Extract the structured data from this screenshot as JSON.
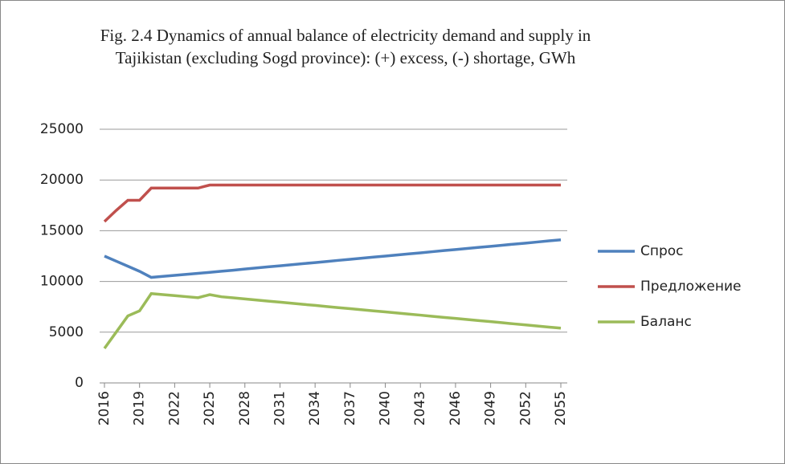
{
  "chart_data": {
    "type": "line",
    "title": "Fig. 2.4 Dynamics of annual balance of electricity demand and supply in Tajikistan (excluding Sogd province): (+) excess, (-) shortage, GWh",
    "x": [
      2016,
      2017,
      2018,
      2019,
      2020,
      2021,
      2022,
      2023,
      2024,
      2025,
      2026,
      2027,
      2028,
      2029,
      2030,
      2031,
      2032,
      2033,
      2034,
      2035,
      2036,
      2037,
      2038,
      2039,
      2040,
      2041,
      2042,
      2043,
      2044,
      2045,
      2046,
      2047,
      2048,
      2049,
      2050,
      2051,
      2052,
      2053,
      2054,
      2055
    ],
    "xlim": [
      2016,
      2055
    ],
    "xticks": [
      2016,
      2019,
      2022,
      2025,
      2028,
      2031,
      2034,
      2037,
      2040,
      2043,
      2046,
      2049,
      2052,
      2055
    ],
    "ylim": [
      0,
      25000
    ],
    "yticks": [
      0,
      5000,
      10000,
      15000,
      20000,
      25000
    ],
    "grid": true,
    "legend": "right",
    "series": [
      {
        "name": "Спрос",
        "color": "#4f81bd",
        "values": [
          12500,
          12000,
          11500,
          11000,
          10400,
          10500,
          10600,
          10700,
          10800,
          10900,
          11010,
          11110,
          11220,
          11330,
          11440,
          11540,
          11650,
          11760,
          11860,
          11970,
          12080,
          12180,
          12290,
          12400,
          12500,
          12610,
          12720,
          12820,
          12930,
          13040,
          13140,
          13250,
          13360,
          13460,
          13570,
          13680,
          13780,
          13890,
          14000,
          14100
        ]
      },
      {
        "name": "Предложение",
        "color": "#c0504d",
        "values": [
          15900,
          17000,
          18000,
          18000,
          19200,
          19200,
          19200,
          19200,
          19200,
          19500,
          19500,
          19500,
          19500,
          19500,
          19500,
          19500,
          19500,
          19500,
          19500,
          19500,
          19500,
          19500,
          19500,
          19500,
          19500,
          19500,
          19500,
          19500,
          19500,
          19500,
          19500,
          19500,
          19500,
          19500,
          19500,
          19500,
          19500,
          19500,
          19500,
          19500
        ]
      },
      {
        "name": "Баланс",
        "color": "#9bbb59",
        "values": [
          3400,
          5000,
          6600,
          7100,
          8800,
          8700,
          8600,
          8500,
          8400,
          8700,
          8490,
          8390,
          8280,
          8170,
          8060,
          7960,
          7850,
          7740,
          7640,
          7530,
          7420,
          7320,
          7210,
          7100,
          7000,
          6890,
          6780,
          6680,
          6570,
          6460,
          6360,
          6250,
          6140,
          6040,
          5930,
          5820,
          5720,
          5610,
          5500,
          5400
        ]
      }
    ]
  }
}
